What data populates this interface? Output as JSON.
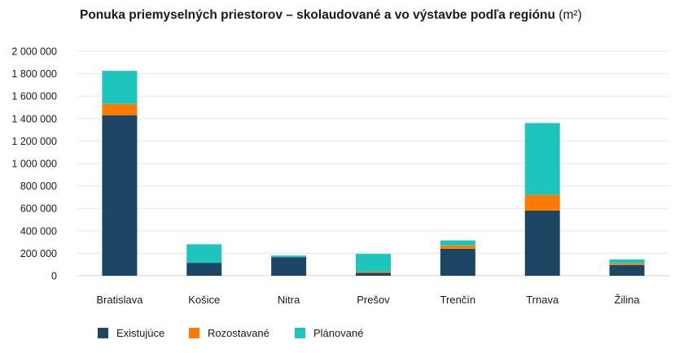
{
  "colors": {
    "existujuce": "#1c4564",
    "rozostavane": "#ff7a00",
    "planovane": "#1ec5bd",
    "grid": "#e6e6e6"
  },
  "chart_data": {
    "type": "bar",
    "stacked": true,
    "title": "Ponuka priemyselných priestorov – skolaudované a vo výstavbe podľa regiónu",
    "unit": "(m²)",
    "categories": [
      "Bratislava",
      "Košice",
      "Nitra",
      "Prešov",
      "Trenčín",
      "Trnava",
      "Žilina"
    ],
    "series": [
      {
        "name": "Existujúce",
        "color": "#1c4564",
        "values": [
          1430000,
          115000,
          165000,
          25000,
          240000,
          580000,
          95000
        ]
      },
      {
        "name": "Rozostavané",
        "color": "#ff7a00",
        "values": [
          100000,
          0,
          0,
          10000,
          30000,
          140000,
          15000
        ]
      },
      {
        "name": "Plánované",
        "color": "#1ec5bd",
        "values": [
          295000,
          165000,
          15000,
          160000,
          45000,
          640000,
          35000
        ]
      }
    ],
    "yticks": [
      "0",
      "200 000",
      "400 000",
      "600 000",
      "800 000",
      "1 000 000",
      "1 200 000",
      "1 400 000",
      "1 600 000",
      "1 800 000",
      "2 000 000"
    ],
    "ylim": [
      0,
      2000000
    ],
    "grid": true,
    "legend_position": "bottom-left"
  }
}
